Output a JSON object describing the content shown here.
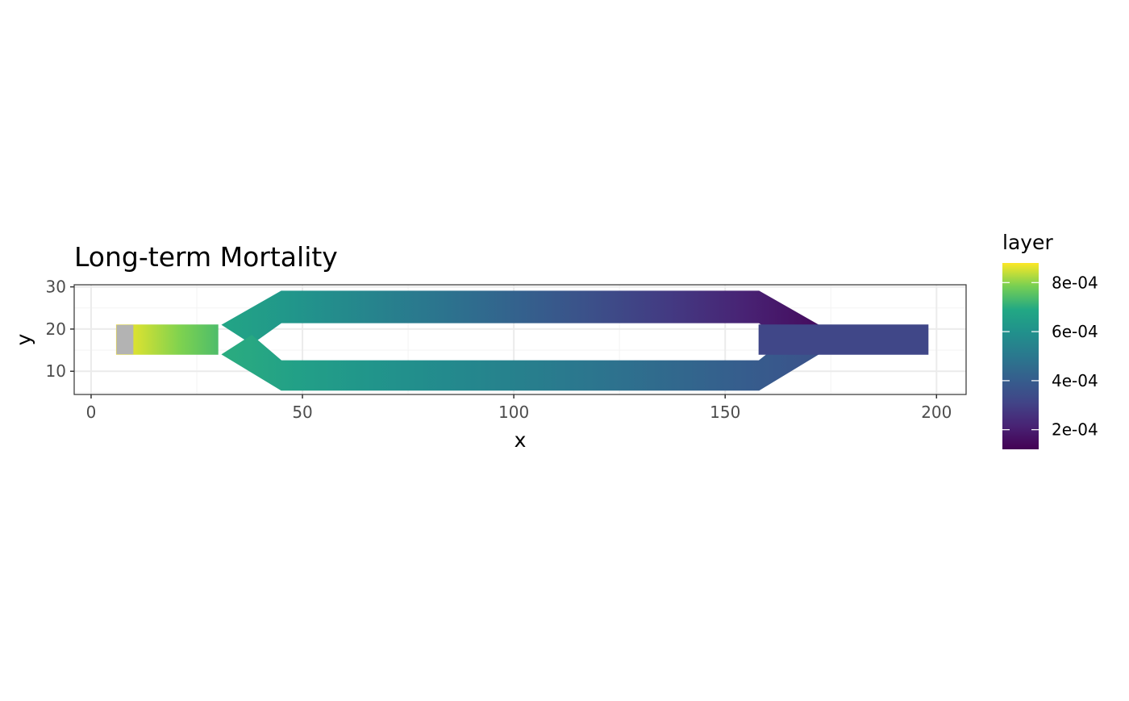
{
  "chart_data": {
    "type": "heatmap",
    "title": "Long-term Mortality",
    "xlabel": "x",
    "ylabel": "y",
    "xlim": [
      -4,
      207
    ],
    "ylim": [
      4.5,
      30.5
    ],
    "x_ticks": [
      0,
      50,
      100,
      150,
      200
    ],
    "y_ticks": [
      10,
      20,
      30
    ],
    "x_tick_labels": [
      "0",
      "50",
      "100",
      "150",
      "200"
    ],
    "y_tick_labels": [
      "10",
      "20",
      "30"
    ],
    "grid": true,
    "legend": {
      "title": "layer",
      "placement": "right",
      "colormap": "viridis",
      "min": 0.00012,
      "max": 0.00088,
      "ticks": [
        0.0002,
        0.0004,
        0.0006,
        0.0008
      ],
      "tick_labels": [
        "2e-04",
        "4e-04",
        "6e-04",
        "8e-04"
      ]
    },
    "na_color": "#b3b3b3",
    "na_region": {
      "x": [
        6,
        10
      ],
      "y": [
        14,
        21
      ]
    },
    "regions": [
      {
        "name": "inlet",
        "x": [
          6,
          30
        ],
        "y": [
          14,
          21
        ],
        "value_start": 0.00088,
        "value_end": 0.00074
      },
      {
        "name": "upper-branch",
        "x": [
          30,
          158
        ],
        "y": [
          22,
          29
        ],
        "value_start": 0.00068,
        "value_end": 0.00015
      },
      {
        "name": "lower-branch",
        "x": [
          30,
          158
        ],
        "y": [
          5.5,
          12.5
        ],
        "value_start": 0.0007,
        "value_end": 0.00036
      },
      {
        "name": "outlet",
        "x": [
          158,
          198
        ],
        "y": [
          14,
          21
        ],
        "value_start": 0.00032,
        "value_end": 0.00032
      }
    ]
  }
}
